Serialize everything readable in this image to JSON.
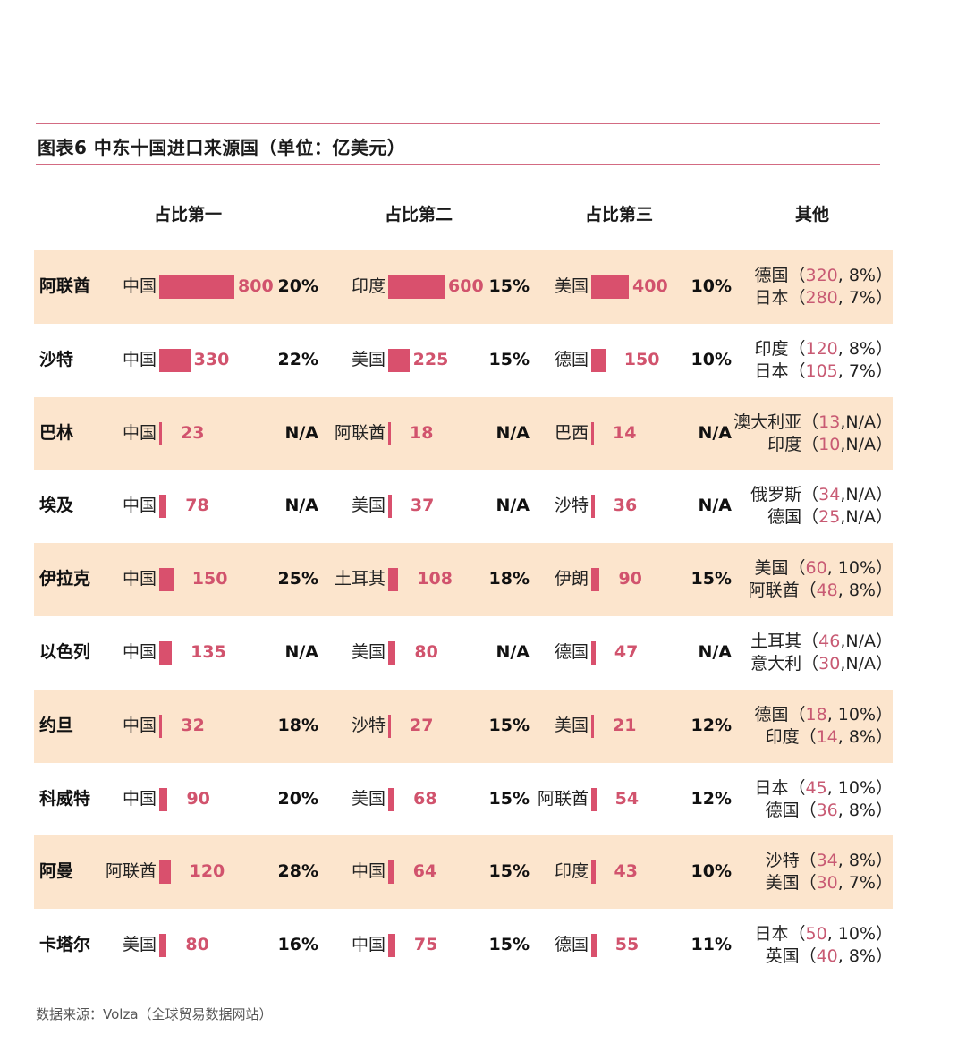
{
  "title": "图表6  中东十国进口来源国（单位：亿美元）",
  "headers": [
    "占比第一",
    "占比第二",
    "占比第三",
    "其他"
  ],
  "source": "数据来源：Volza（全球贸易数据网站）",
  "colors": {
    "bar": "#d9506d",
    "value": "#d1536d",
    "shade": "#fce5cd",
    "rule": "#d36b82"
  },
  "chart_data": {
    "type": "table",
    "title": "图表6  中东十国进口来源国（单位：亿美元）",
    "unit": "亿美元",
    "rows": [
      {
        "country": "阿联酋",
        "shaded": true,
        "top": [
          {
            "source": "中国",
            "value": 800,
            "share": "20%"
          },
          {
            "source": "印度",
            "value": 600,
            "share": "15%"
          },
          {
            "source": "美国",
            "value": 400,
            "share": "10%"
          }
        ],
        "others": [
          {
            "name": "德国",
            "value": "320",
            "share": "8%"
          },
          {
            "name": "日本",
            "value": "280",
            "share": "7%"
          }
        ]
      },
      {
        "country": "沙特",
        "shaded": false,
        "top": [
          {
            "source": "中国",
            "value": 330,
            "share": "22%"
          },
          {
            "source": "美国",
            "value": 225,
            "share": "15%"
          },
          {
            "source": "德国",
            "value": 150,
            "share": "10%"
          }
        ],
        "others": [
          {
            "name": "印度",
            "value": "120",
            "share": "8%"
          },
          {
            "name": "日本",
            "value": "105",
            "share": "7%"
          }
        ]
      },
      {
        "country": "巴林",
        "shaded": true,
        "top": [
          {
            "source": "中国",
            "value": 23,
            "share": "N/A"
          },
          {
            "source": "阿联酋",
            "value": 18,
            "share": "N/A"
          },
          {
            "source": "巴西",
            "value": 14,
            "share": "N/A"
          }
        ],
        "others": [
          {
            "name": "澳大利亚",
            "value": "13",
            "share": "N/A"
          },
          {
            "name": "印度",
            "value": "10",
            "share": "N/A"
          }
        ]
      },
      {
        "country": "埃及",
        "shaded": false,
        "top": [
          {
            "source": "中国",
            "value": 78,
            "share": "N/A"
          },
          {
            "source": "美国",
            "value": 37,
            "share": "N/A"
          },
          {
            "source": "沙特",
            "value": 36,
            "share": "N/A"
          }
        ],
        "others": [
          {
            "name": "俄罗斯",
            "value": "34",
            "share": "N/A"
          },
          {
            "name": "德国",
            "value": "25",
            "share": "N/A"
          }
        ]
      },
      {
        "country": "伊拉克",
        "shaded": true,
        "top": [
          {
            "source": "中国",
            "value": 150,
            "share": "25%"
          },
          {
            "source": "土耳其",
            "value": 108,
            "share": "18%"
          },
          {
            "source": "伊朗",
            "value": 90,
            "share": "15%"
          }
        ],
        "others": [
          {
            "name": "美国",
            "value": "60",
            "share": "10%"
          },
          {
            "name": "阿联酋",
            "value": "48",
            "share": "8%"
          }
        ]
      },
      {
        "country": "以色列",
        "shaded": false,
        "top": [
          {
            "source": "中国",
            "value": 135,
            "share": "N/A"
          },
          {
            "source": "美国",
            "value": 80,
            "share": "N/A"
          },
          {
            "source": "德国",
            "value": 47,
            "share": "N/A"
          }
        ],
        "others": [
          {
            "name": "土耳其",
            "value": "46",
            "share": "N/A"
          },
          {
            "name": "意大利",
            "value": "30",
            "share": "N/A"
          }
        ]
      },
      {
        "country": "约旦",
        "shaded": true,
        "top": [
          {
            "source": "中国",
            "value": 32,
            "share": "18%"
          },
          {
            "source": "沙特",
            "value": 27,
            "share": "15%"
          },
          {
            "source": "美国",
            "value": 21,
            "share": "12%"
          }
        ],
        "others": [
          {
            "name": "德国",
            "value": "18",
            "share": "10%"
          },
          {
            "name": "印度",
            "value": "14",
            "share": "8%"
          }
        ]
      },
      {
        "country": "科威特",
        "shaded": false,
        "top": [
          {
            "source": "中国",
            "value": 90,
            "share": "20%"
          },
          {
            "source": "美国",
            "value": 68,
            "share": "15%"
          },
          {
            "source": "阿联酋",
            "value": 54,
            "share": "12%"
          }
        ],
        "others": [
          {
            "name": "日本",
            "value": "45",
            "share": "10%"
          },
          {
            "name": "德国",
            "value": "36",
            "share": "8%"
          }
        ]
      },
      {
        "country": "阿曼",
        "shaded": true,
        "top": [
          {
            "source": "阿联酋",
            "value": 120,
            "share": "28%"
          },
          {
            "source": "中国",
            "value": 64,
            "share": "15%"
          },
          {
            "source": "印度",
            "value": 43,
            "share": "10%"
          }
        ],
        "others": [
          {
            "name": "沙特",
            "value": "34",
            "share": "8%"
          },
          {
            "name": "美国",
            "value": "30",
            "share": "7%"
          }
        ]
      },
      {
        "country": "卡塔尔",
        "shaded": false,
        "top": [
          {
            "source": "美国",
            "value": 80,
            "share": "16%"
          },
          {
            "source": "中国",
            "value": 75,
            "share": "15%"
          },
          {
            "source": "德国",
            "value": 55,
            "share": "11%"
          }
        ],
        "others": [
          {
            "name": "日本",
            "value": "50",
            "share": "10%"
          },
          {
            "name": "英国",
            "value": "40",
            "share": "8%"
          }
        ]
      }
    ]
  }
}
